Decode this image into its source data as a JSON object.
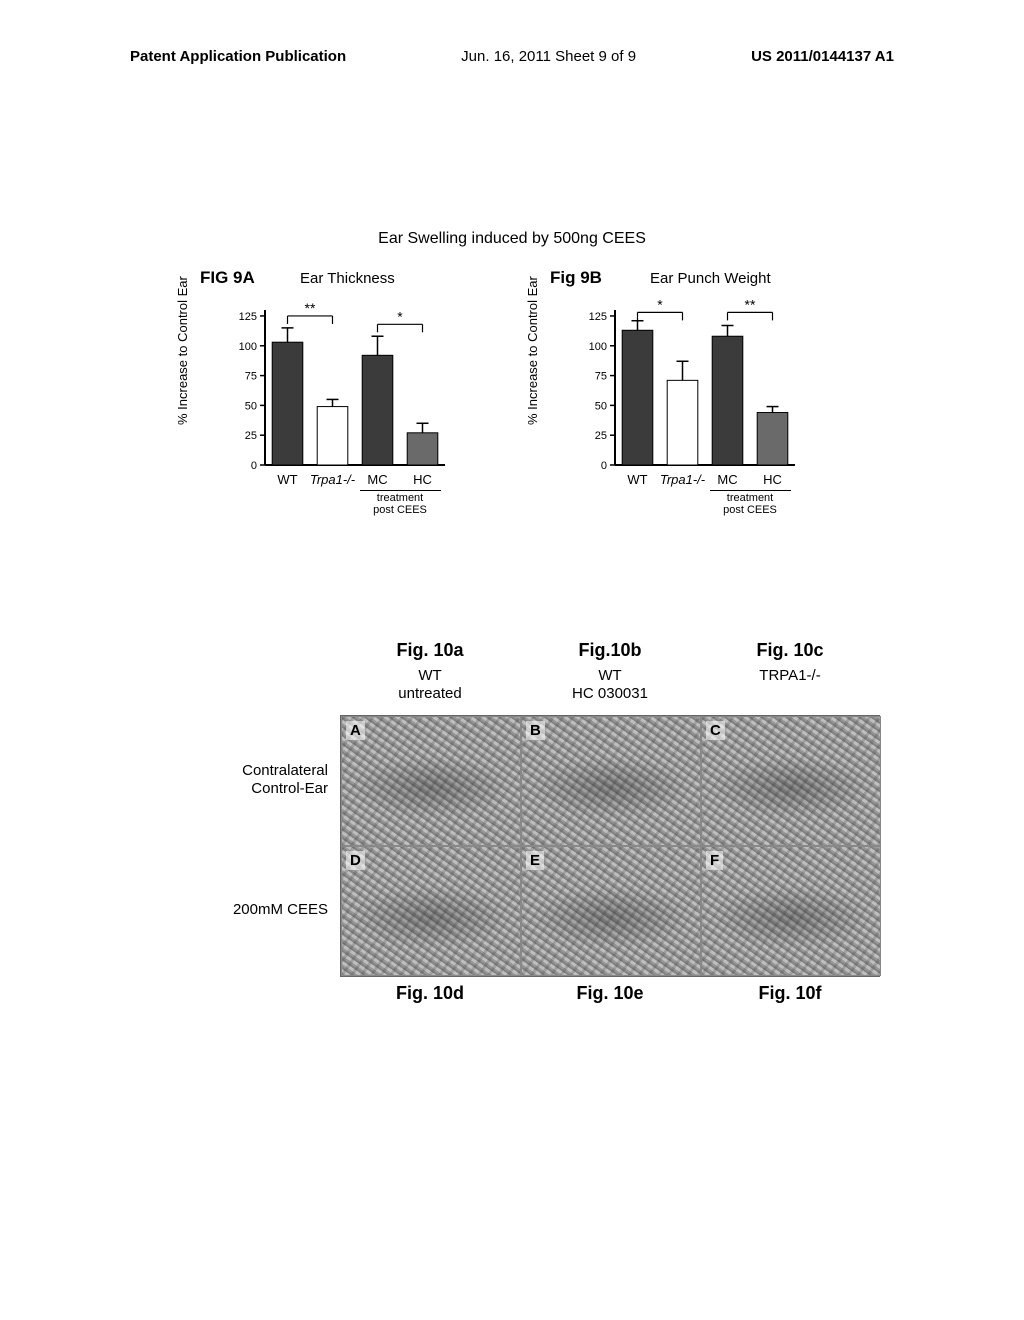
{
  "header": {
    "left": "Patent Application Publication",
    "center": "Jun. 16, 2011  Sheet 9 of 9",
    "right": "US 2011/0144137 A1"
  },
  "main_title": "Ear Swelling induced by 500ng CEES",
  "chart_a": {
    "fig_label": "FIG 9A",
    "title": "Ear Thickness",
    "ylabel": "% Increase to Control Ear",
    "ylim": [
      0,
      130
    ],
    "yticks": [
      0,
      25,
      50,
      75,
      100,
      125
    ],
    "categories": [
      "WT",
      "Trpa1-/-",
      "MC",
      "HC"
    ],
    "values": [
      103,
      49,
      92,
      27
    ],
    "errors": [
      12,
      6,
      16,
      8
    ],
    "bar_colors": [
      "#3b3b3b",
      "#ffffff",
      "#3b3b3b",
      "#6a6a6a"
    ],
    "sig_pair1": {
      "from": 0,
      "to": 1,
      "label": "**",
      "y": 125
    },
    "sig_pair2": {
      "from": 2,
      "to": 3,
      "label": "*",
      "y": 118
    },
    "sub_label": "treatment\npost CEES",
    "sub_label_under": [
      2,
      3
    ],
    "italic_idx": 1,
    "axis_color": "#000000",
    "label_fontsize": 12,
    "bar_width": 0.68
  },
  "chart_b": {
    "fig_label": "Fig 9B",
    "title": "Ear Punch Weight",
    "ylabel": "% Increase to Control Ear",
    "ylim": [
      0,
      130
    ],
    "yticks": [
      0,
      25,
      50,
      75,
      100,
      125
    ],
    "categories": [
      "WT",
      "Trpa1-/-",
      "MC",
      "HC"
    ],
    "values": [
      113,
      71,
      108,
      44
    ],
    "errors": [
      8,
      16,
      9,
      5
    ],
    "bar_colors": [
      "#3b3b3b",
      "#ffffff",
      "#3b3b3b",
      "#6a6a6a"
    ],
    "sig_pair1": {
      "from": 0,
      "to": 1,
      "label": "*",
      "y": 128
    },
    "sig_pair2": {
      "from": 2,
      "to": 3,
      "label": "**",
      "y": 128
    },
    "sub_label": "treatment\npost CEES",
    "sub_label_under": [
      2,
      3
    ],
    "italic_idx": 1,
    "axis_color": "#000000",
    "label_fontsize": 12,
    "bar_width": 0.68
  },
  "panels": {
    "top_fig": [
      "Fig. 10a",
      "Fig.10b",
      "Fig. 10c"
    ],
    "col_head_line1": [
      "WT",
      "WT",
      "TRPA1-/-"
    ],
    "col_head_line2": [
      "untreated",
      "HC 030031",
      ""
    ],
    "row_labels": [
      "Contralateral\nControl-Ear",
      "200mM CEES"
    ],
    "letters": [
      "A",
      "B",
      "C",
      "D",
      "E",
      "F"
    ],
    "bottom_fig": [
      "Fig. 10d",
      "Fig. 10e",
      "Fig. 10f"
    ]
  }
}
